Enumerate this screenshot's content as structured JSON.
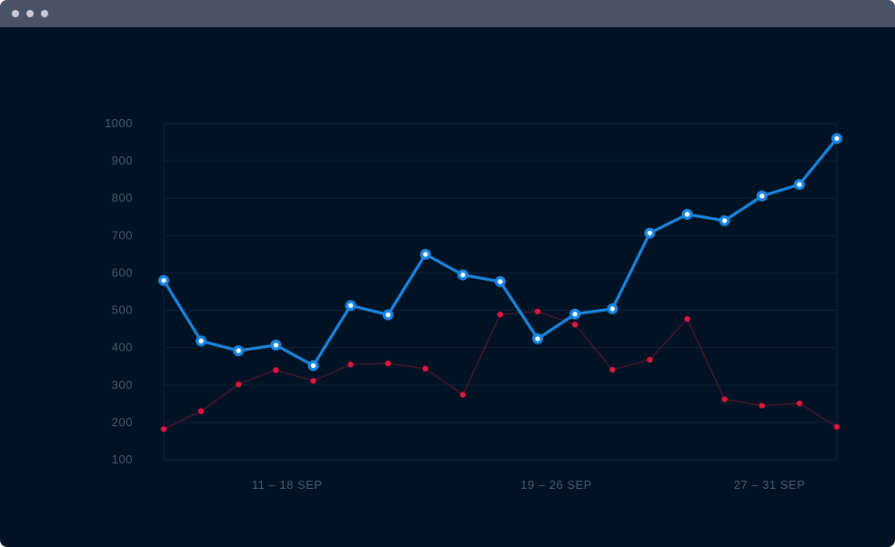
{
  "window": {
    "controls": [
      "close-dot",
      "minimize-dot",
      "maximize-dot"
    ]
  },
  "colors": {
    "background": "#001324",
    "titlebar": "#4a5266",
    "window_dot": "#c9ccd6",
    "grid": "#0f2233",
    "axis_text": "#4d5a6a",
    "series_blue": "#1a86e0",
    "series_blue_point_fill": "#ffffff",
    "series_red_line": "#4a1430",
    "series_red_point": "#e0163c"
  },
  "chart_data": {
    "type": "line",
    "title": "",
    "xlabel": "",
    "ylabel": "",
    "ylim": [
      100,
      1000
    ],
    "yticks": [
      100,
      200,
      300,
      400,
      500,
      600,
      700,
      800,
      900,
      1000
    ],
    "grid": true,
    "x_count": 19,
    "x_group_labels": [
      {
        "label": "11 – 18 SEP",
        "center_index": 3.3
      },
      {
        "label": "19 – 26 SEP",
        "center_index": 10.5
      },
      {
        "label": "27 – 31 SEP",
        "center_index": 16.2
      }
    ],
    "series": [
      {
        "color": "#1a86e0",
        "values": [
          580,
          418,
          392,
          407,
          352,
          513,
          488,
          650,
          595,
          577,
          424,
          490,
          504,
          707,
          757,
          740,
          806,
          837,
          960
        ]
      },
      {
        "color": "#e0163c",
        "values": [
          182,
          230,
          302,
          340,
          311,
          355,
          358,
          344,
          274,
          489,
          497,
          462,
          341,
          368,
          477,
          262,
          245,
          251,
          188
        ]
      }
    ]
  }
}
